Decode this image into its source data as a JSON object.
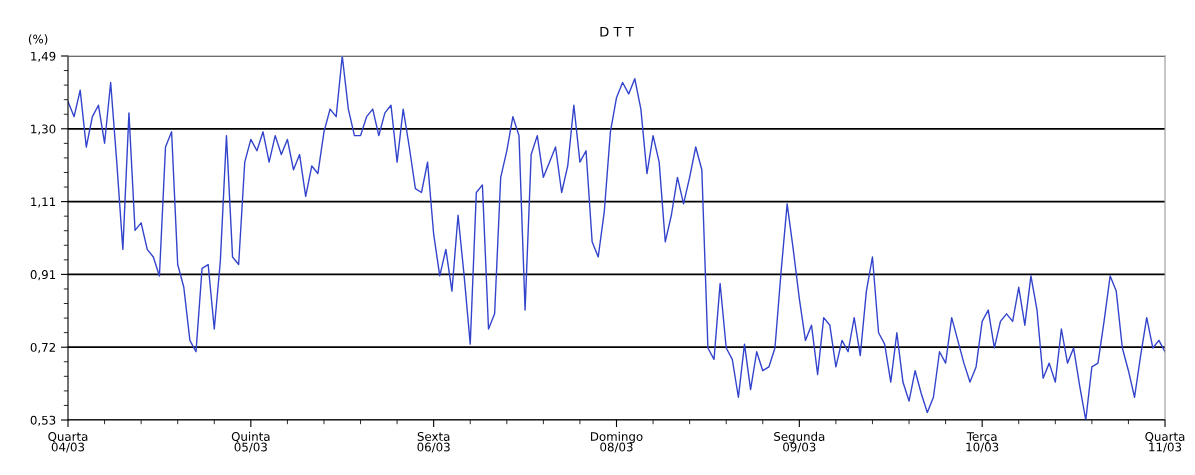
{
  "chart_data": {
    "type": "line",
    "title": "D T T",
    "ylabel": "(%)",
    "categories": [
      "Quarta\n04/03",
      null,
      null,
      null,
      null,
      null,
      null,
      null,
      null,
      null,
      null,
      null,
      null,
      null,
      null,
      null,
      null,
      null,
      null,
      null,
      null,
      null,
      null,
      null,
      null,
      null,
      null,
      null,
      null,
      null,
      "Quinta\n05/03",
      null,
      null,
      null,
      null,
      null,
      null,
      null,
      null,
      null,
      null,
      null,
      null,
      null,
      null,
      null,
      null,
      null,
      null,
      null,
      null,
      null,
      null,
      null,
      null,
      null,
      null,
      null,
      null,
      null,
      "Sexta\n06/03",
      null,
      null,
      null,
      null,
      null,
      null,
      null,
      null,
      null,
      null,
      null,
      null,
      null,
      null,
      null,
      null,
      null,
      null,
      null,
      null,
      null,
      null,
      null,
      null,
      null,
      null,
      null,
      null,
      null,
      "Domingo\n08/03",
      null,
      null,
      null,
      null,
      null,
      null,
      null,
      null,
      null,
      null,
      null,
      null,
      null,
      null,
      null,
      null,
      null,
      null,
      null,
      null,
      null,
      null,
      null,
      null,
      null,
      null,
      null,
      null,
      null,
      "Segunda\n09/03",
      null,
      null,
      null,
      null,
      null,
      null,
      null,
      null,
      null,
      null,
      null,
      null,
      null,
      null,
      null,
      null,
      null,
      null,
      null,
      null,
      null,
      null,
      null,
      null,
      null,
      null,
      null,
      null,
      null,
      "Terça\n10/03",
      null,
      null,
      null,
      null,
      null,
      null,
      null,
      null,
      null,
      null,
      null,
      null,
      null,
      null,
      null,
      null,
      null,
      null,
      null,
      null,
      null,
      null,
      null,
      null,
      null,
      null,
      null,
      null,
      null,
      "Quarta\n11/03"
    ],
    "ylim": [
      0.53,
      1.49
    ],
    "yticks": [
      {
        "value": 0.53,
        "label": "0,53"
      },
      {
        "value": 0.722,
        "label": "0,72"
      },
      {
        "value": 0.914,
        "label": "0,91"
      },
      {
        "value": 1.106,
        "label": "1,11"
      },
      {
        "value": 1.298,
        "label": "1,30"
      },
      {
        "value": 1.49,
        "label": "1,49"
      }
    ],
    "grid": "y",
    "marker": "none",
    "line_style": "solid",
    "series": [
      {
        "color": "#3344cc",
        "values": [
          1.37,
          1.33,
          1.4,
          1.25,
          1.33,
          1.36,
          1.26,
          1.42,
          1.21,
          0.98,
          1.34,
          1.03,
          1.05,
          0.98,
          0.96,
          0.91,
          1.25,
          1.29,
          0.94,
          0.88,
          0.74,
          0.71,
          0.93,
          0.94,
          0.77,
          0.95,
          1.28,
          0.96,
          0.94,
          1.21,
          1.27,
          1.24,
          1.29,
          1.21,
          1.28,
          1.23,
          1.27,
          1.19,
          1.23,
          1.12,
          1.2,
          1.18,
          1.29,
          1.35,
          1.33,
          1.49,
          1.35,
          1.28,
          1.28,
          1.33,
          1.35,
          1.28,
          1.34,
          1.36,
          1.21,
          1.35,
          1.25,
          1.14,
          1.13,
          1.21,
          1.02,
          0.91,
          0.98,
          0.87,
          1.07,
          0.91,
          0.73,
          1.13,
          1.15,
          0.77,
          0.81,
          1.17,
          1.24,
          1.33,
          1.28,
          0.82,
          1.23,
          1.28,
          1.17,
          1.21,
          1.25,
          1.13,
          1.2,
          1.36,
          1.21,
          1.24,
          1.0,
          0.96,
          1.08,
          1.29,
          1.38,
          1.42,
          1.39,
          1.43,
          1.35,
          1.18,
          1.28,
          1.21,
          1.0,
          1.07,
          1.17,
          1.1,
          1.17,
          1.25,
          1.19,
          0.72,
          0.69,
          0.89,
          0.72,
          0.69,
          0.59,
          0.73,
          0.61,
          0.71,
          0.66,
          0.67,
          0.72,
          0.92,
          1.1,
          0.98,
          0.85,
          0.74,
          0.78,
          0.65,
          0.8,
          0.78,
          0.67,
          0.74,
          0.71,
          0.8,
          0.7,
          0.87,
          0.96,
          0.76,
          0.73,
          0.63,
          0.76,
          0.63,
          0.58,
          0.66,
          0.6,
          0.55,
          0.59,
          0.71,
          0.68,
          0.8,
          0.74,
          0.68,
          0.63,
          0.67,
          0.79,
          0.82,
          0.72,
          0.79,
          0.81,
          0.79,
          0.88,
          0.78,
          0.91,
          0.82,
          0.64,
          0.68,
          0.63,
          0.77,
          0.68,
          0.72,
          0.62,
          0.53,
          0.67,
          0.68,
          0.79,
          0.91,
          0.87,
          0.72,
          0.66,
          0.59,
          0.7,
          0.8,
          0.72,
          0.74,
          0.71
        ]
      }
    ]
  }
}
